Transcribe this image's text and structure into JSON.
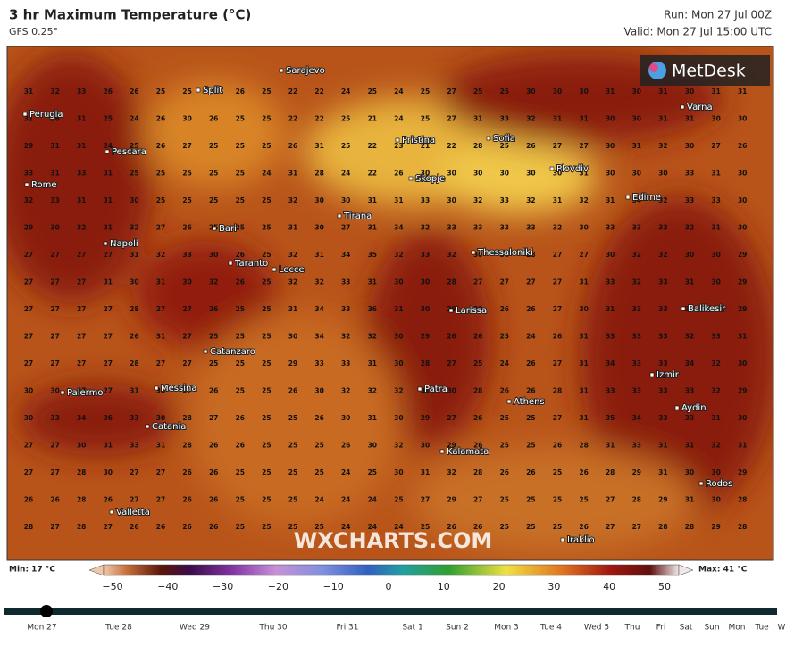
{
  "header": {
    "title": "3 hr Maximum Temperature (°C)",
    "model": "GFS 0.25°",
    "run": "Run: Mon 27 Jul 00Z",
    "valid": "Valid: Mon 27 Jul 15:00 UTC"
  },
  "logo": "MetDesk",
  "watermark": "WXCHARTS.COM",
  "cities": [
    "Sarajevo",
    "Split",
    "Perugia",
    "Pescara",
    "Rome",
    "Pristina",
    "Sofia",
    "Varna",
    "Plovdiv",
    "Skopje",
    "Edirne",
    "Tirana",
    "Bari",
    "Napoli",
    "Thessaloniki",
    "Taranto",
    "Lecce",
    "Larissa",
    "Balikesir",
    "Catanzaro",
    "Izmir",
    "Patra",
    "Athens",
    "Aydin",
    "Palermo",
    "Messina",
    "Catania",
    "Kalamata",
    "Rodos",
    "Valletta",
    "Iraklio"
  ],
  "grid": [
    [
      31,
      32,
      33,
      26,
      26,
      25,
      25,
      25,
      26,
      25,
      22,
      22,
      24,
      25,
      24,
      25,
      27,
      25,
      25,
      30,
      30,
      30,
      31,
      30,
      31,
      30,
      31,
      31
    ],
    [
      31,
      26,
      31,
      25,
      24,
      26,
      30,
      26,
      25,
      25,
      22,
      22,
      25,
      21,
      24,
      25,
      27,
      31,
      33,
      32,
      31,
      31,
      30,
      30,
      31,
      31,
      30,
      30
    ],
    [
      29,
      31,
      31,
      24,
      25,
      26,
      27,
      25,
      25,
      25,
      26,
      31,
      25,
      22,
      23,
      21,
      22,
      28,
      25,
      26,
      27,
      27,
      30,
      31,
      32,
      30,
      27,
      26
    ],
    [
      33,
      31,
      33,
      31,
      25,
      25,
      25,
      25,
      25,
      24,
      31,
      28,
      24,
      22,
      26,
      30,
      30,
      30,
      30,
      30,
      30,
      31,
      30,
      30,
      30,
      33,
      31,
      30
    ],
    [
      32,
      33,
      31,
      31,
      30,
      25,
      25,
      25,
      25,
      25,
      32,
      30,
      30,
      31,
      31,
      33,
      30,
      32,
      33,
      32,
      31,
      32,
      31,
      34,
      32,
      33,
      33,
      30
    ],
    [
      29,
      30,
      32,
      31,
      32,
      27,
      26,
      25,
      25,
      25,
      31,
      30,
      27,
      31,
      34,
      32,
      33,
      33,
      33,
      33,
      32,
      30,
      33,
      33,
      33,
      32,
      31,
      30
    ],
    [
      27,
      27,
      27,
      27,
      31,
      32,
      33,
      30,
      26,
      25,
      32,
      31,
      34,
      35,
      32,
      33,
      32,
      30,
      30,
      28,
      27,
      27,
      30,
      32,
      32,
      30,
      30,
      29
    ],
    [
      27,
      27,
      27,
      31,
      30,
      31,
      30,
      32,
      26,
      25,
      32,
      32,
      33,
      31,
      30,
      30,
      28,
      27,
      27,
      27,
      27,
      31,
      33,
      32,
      33,
      31,
      30,
      29
    ],
    [
      27,
      27,
      27,
      27,
      28,
      27,
      27,
      26,
      25,
      25,
      31,
      34,
      33,
      36,
      31,
      30,
      29,
      28,
      26,
      26,
      27,
      30,
      31,
      33,
      33,
      31,
      29,
      29
    ],
    [
      27,
      27,
      27,
      27,
      26,
      31,
      27,
      25,
      25,
      25,
      30,
      34,
      32,
      32,
      30,
      29,
      26,
      26,
      25,
      24,
      26,
      31,
      33,
      33,
      33,
      32,
      33,
      31
    ],
    [
      27,
      27,
      27,
      27,
      28,
      27,
      27,
      25,
      25,
      25,
      29,
      33,
      33,
      31,
      30,
      28,
      27,
      25,
      24,
      26,
      27,
      31,
      34,
      33,
      33,
      34,
      32,
      30
    ],
    [
      30,
      30,
      27,
      27,
      31,
      30,
      27,
      26,
      25,
      25,
      26,
      30,
      32,
      32,
      32,
      31,
      30,
      28,
      26,
      26,
      28,
      31,
      33,
      33,
      33,
      33,
      32,
      29
    ],
    [
      30,
      33,
      34,
      36,
      33,
      30,
      28,
      27,
      26,
      25,
      25,
      26,
      30,
      31,
      30,
      29,
      27,
      26,
      25,
      25,
      27,
      31,
      35,
      34,
      33,
      33,
      31,
      30
    ],
    [
      27,
      27,
      30,
      31,
      33,
      31,
      28,
      26,
      26,
      25,
      25,
      25,
      26,
      30,
      32,
      30,
      29,
      26,
      25,
      25,
      26,
      28,
      31,
      33,
      31,
      31,
      32,
      31
    ],
    [
      27,
      27,
      28,
      30,
      27,
      27,
      26,
      26,
      25,
      25,
      25,
      25,
      24,
      25,
      30,
      31,
      32,
      28,
      26,
      26,
      25,
      26,
      28,
      29,
      31,
      30,
      30,
      29
    ],
    [
      26,
      26,
      28,
      26,
      27,
      27,
      26,
      26,
      25,
      25,
      25,
      24,
      24,
      24,
      25,
      27,
      29,
      27,
      25,
      25,
      25,
      25,
      27,
      28,
      29,
      31,
      30,
      28
    ],
    [
      28,
      27,
      28,
      27,
      26,
      26,
      26,
      26,
      25,
      25,
      25,
      25,
      24,
      24,
      24,
      25,
      26,
      26,
      25,
      25,
      25,
      26,
      27,
      27,
      28,
      28,
      29,
      28
    ]
  ],
  "scale": {
    "min": "Min: 17 °C",
    "max": "Max: 41 °C",
    "labels": [
      "−50",
      "−40",
      "−30",
      "−20",
      "−10",
      "0",
      "10",
      "20",
      "30",
      "40",
      "50"
    ]
  },
  "timeline": [
    "Mon 27",
    "Tue 28",
    "Wed 29",
    "Thu 30",
    "Fri 31",
    "Sat 1",
    "Sun 2",
    "Mon 3",
    "Tue 4",
    "Wed 5",
    "Thu",
    "Fri",
    "Sat",
    "Sun",
    "Mon",
    "Tue",
    "W"
  ]
}
